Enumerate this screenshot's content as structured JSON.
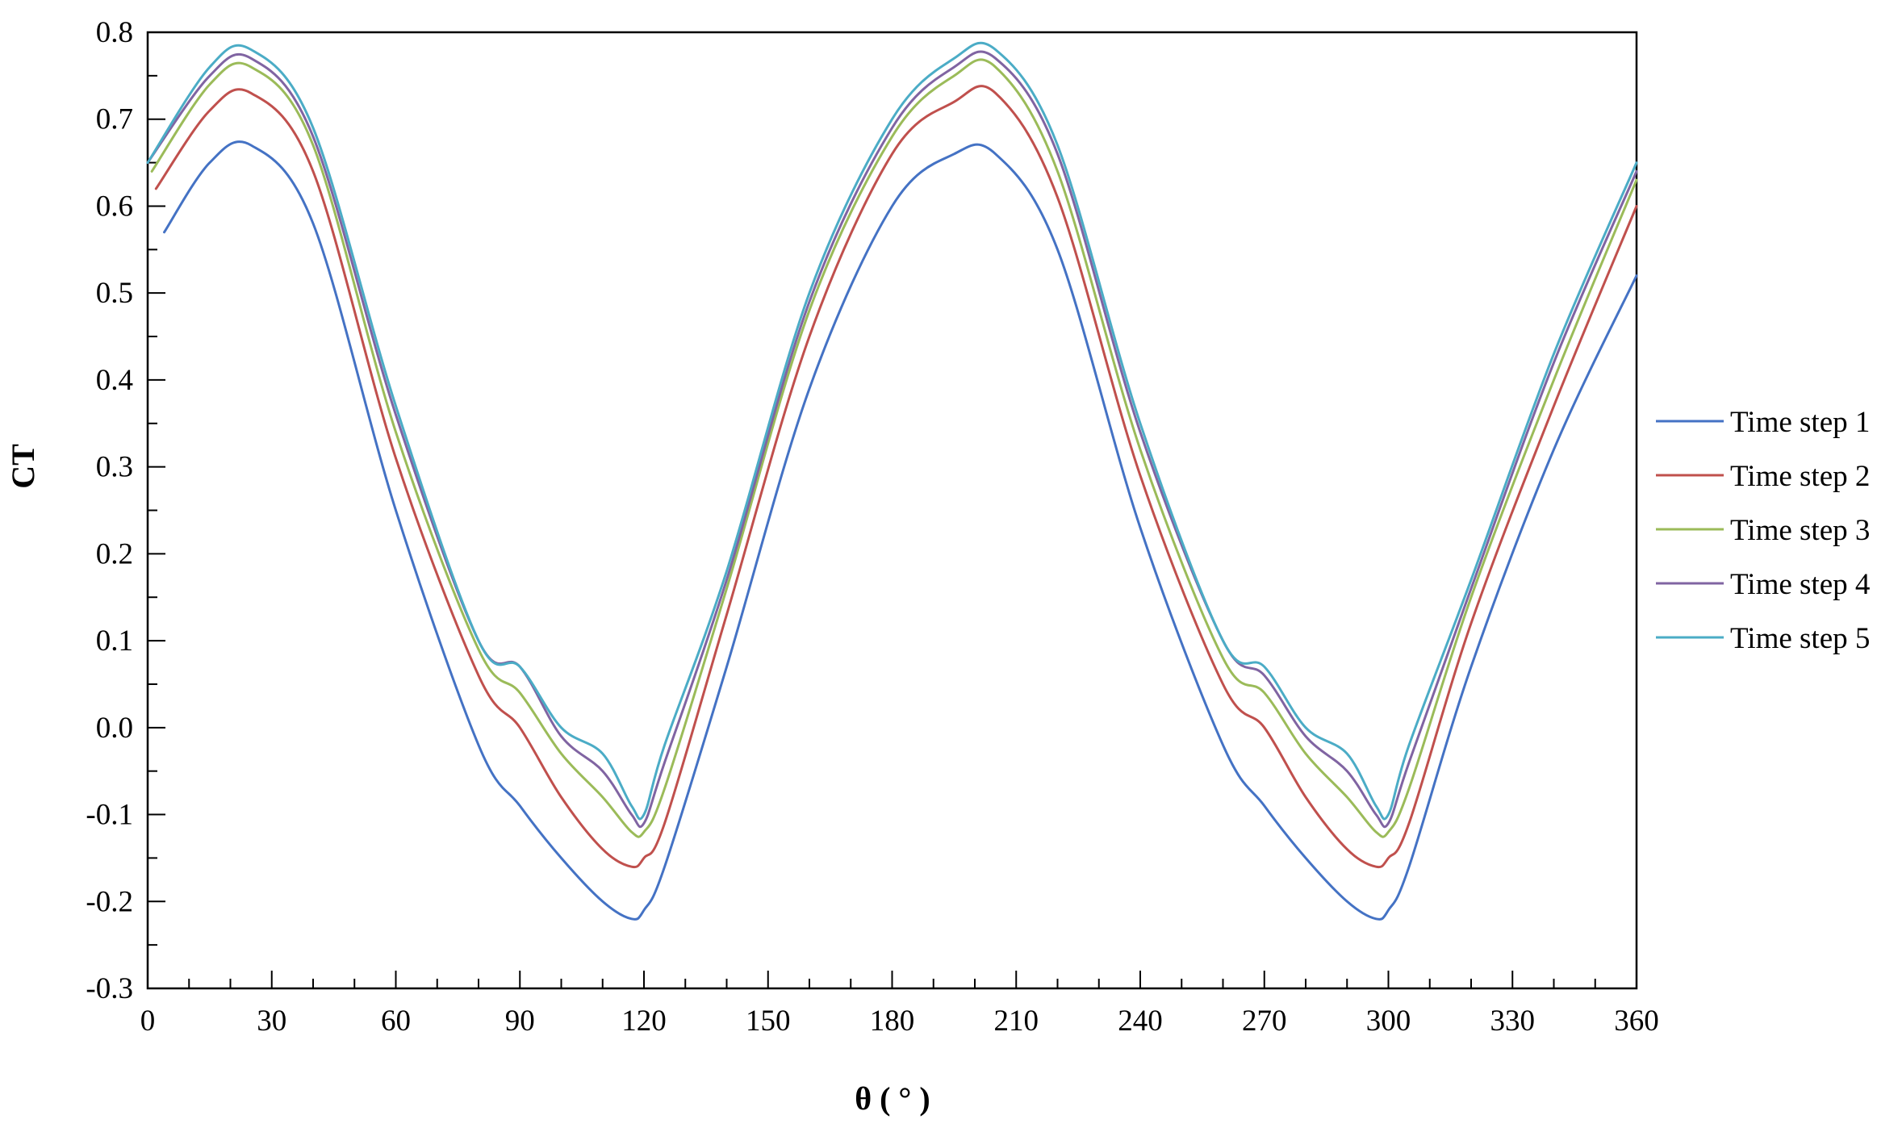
{
  "chart_data": {
    "type": "line",
    "title": "",
    "xlabel": "θ ( ° )",
    "ylabel": "CT",
    "xlim": [
      0,
      360
    ],
    "ylim": [
      -0.3,
      0.8
    ],
    "x_ticks": [
      0,
      30,
      60,
      90,
      120,
      150,
      180,
      210,
      240,
      270,
      300,
      330,
      360
    ],
    "y_ticks": [
      -0.3,
      -0.2,
      -0.1,
      0.0,
      0.1,
      0.2,
      0.3,
      0.4,
      0.5,
      0.6,
      0.7,
      0.8
    ],
    "x_tick_labels": [
      "0",
      "30",
      "60",
      "90",
      "120",
      "150",
      "180",
      "210",
      "240",
      "270",
      "300",
      "330",
      "360"
    ],
    "y_tick_labels": [
      "-0.3",
      "-0.2",
      "-0.1",
      "0.0",
      "0.1",
      "0.2",
      "0.3",
      "0.4",
      "0.5",
      "0.6",
      "0.7",
      "0.8"
    ],
    "grid": false,
    "legend_position": "right",
    "x": [
      0,
      15,
      25,
      40,
      60,
      80,
      90,
      100,
      110,
      117,
      120,
      125,
      140,
      160,
      180,
      195,
      205,
      220,
      240,
      260,
      270,
      280,
      290,
      297,
      300,
      305,
      320,
      340,
      360
    ],
    "series": [
      {
        "name": "Time step 1",
        "color": "#4472C4",
        "x": [
          4,
          15,
          25,
          40,
          60,
          80,
          90,
          100,
          110,
          117,
          120,
          125,
          140,
          160,
          180,
          195,
          205,
          220,
          240,
          260,
          270,
          280,
          290,
          297,
          300,
          305,
          320,
          340,
          360
        ],
        "values": [
          0.57,
          0.65,
          0.67,
          0.58,
          0.25,
          -0.02,
          -0.09,
          -0.15,
          -0.2,
          -0.22,
          -0.21,
          -0.16,
          0.07,
          0.39,
          0.6,
          0.66,
          0.66,
          0.55,
          0.23,
          -0.02,
          -0.09,
          -0.15,
          -0.2,
          -0.22,
          -0.21,
          -0.16,
          0.07,
          0.32,
          0.52
        ]
      },
      {
        "name": "Time step 2",
        "color": "#C0504D",
        "x": [
          2,
          15,
          25,
          40,
          60,
          80,
          90,
          100,
          110,
          117,
          120,
          125,
          140,
          160,
          180,
          195,
          205,
          220,
          240,
          260,
          270,
          280,
          290,
          297,
          300,
          305,
          320,
          340,
          360
        ],
        "values": [
          0.62,
          0.71,
          0.73,
          0.64,
          0.31,
          0.06,
          0.0,
          -0.08,
          -0.14,
          -0.16,
          -0.15,
          -0.11,
          0.13,
          0.45,
          0.66,
          0.72,
          0.73,
          0.61,
          0.29,
          0.05,
          0.0,
          -0.08,
          -0.14,
          -0.16,
          -0.15,
          -0.11,
          0.12,
          0.37,
          0.6
        ]
      },
      {
        "name": "Time step 3",
        "color": "#9BBB59",
        "x": [
          1,
          15,
          25,
          40,
          60,
          80,
          90,
          100,
          110,
          117,
          120,
          125,
          140,
          160,
          180,
          195,
          205,
          220,
          240,
          260,
          270,
          280,
          290,
          297,
          300,
          305,
          320,
          340,
          360
        ],
        "values": [
          0.64,
          0.74,
          0.76,
          0.67,
          0.34,
          0.09,
          0.04,
          -0.03,
          -0.08,
          -0.12,
          -0.12,
          -0.07,
          0.16,
          0.48,
          0.68,
          0.75,
          0.76,
          0.64,
          0.32,
          0.08,
          0.04,
          -0.03,
          -0.08,
          -0.12,
          -0.12,
          -0.07,
          0.15,
          0.4,
          0.63
        ]
      },
      {
        "name": "Time step 4",
        "color": "#8064A2",
        "x": [
          0,
          15,
          25,
          40,
          60,
          80,
          90,
          100,
          110,
          117,
          120,
          125,
          140,
          160,
          180,
          195,
          205,
          220,
          240,
          260,
          270,
          280,
          290,
          297,
          300,
          305,
          320,
          340,
          360
        ],
        "values": [
          0.65,
          0.75,
          0.77,
          0.68,
          0.36,
          0.1,
          0.07,
          -0.01,
          -0.05,
          -0.1,
          -0.11,
          -0.04,
          0.17,
          0.49,
          0.69,
          0.76,
          0.77,
          0.66,
          0.34,
          0.1,
          0.06,
          -0.01,
          -0.05,
          -0.1,
          -0.11,
          -0.04,
          0.16,
          0.42,
          0.64
        ]
      },
      {
        "name": "Time step 5",
        "color": "#4BACC6",
        "x": [
          0,
          15,
          25,
          40,
          60,
          80,
          90,
          100,
          110,
          117,
          120,
          125,
          140,
          160,
          180,
          195,
          205,
          220,
          240,
          260,
          270,
          280,
          290,
          297,
          300,
          305,
          320,
          340,
          360
        ],
        "values": [
          0.65,
          0.76,
          0.78,
          0.69,
          0.37,
          0.1,
          0.07,
          0.0,
          -0.03,
          -0.09,
          -0.1,
          -0.02,
          0.18,
          0.5,
          0.7,
          0.77,
          0.78,
          0.67,
          0.35,
          0.1,
          0.07,
          0.0,
          -0.03,
          -0.09,
          -0.1,
          -0.02,
          0.17,
          0.43,
          0.65
        ]
      }
    ]
  }
}
